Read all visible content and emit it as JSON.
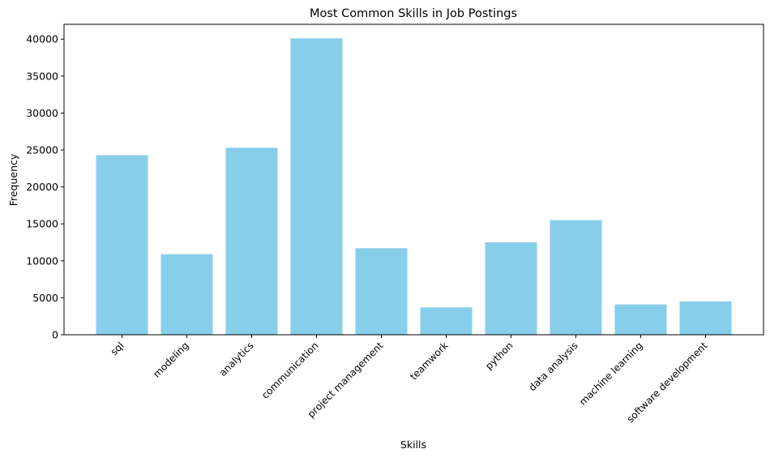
{
  "chart_data": {
    "type": "bar",
    "title": "Most Common Skills in Job Postings",
    "xlabel": "Skills",
    "ylabel": "Frequency",
    "categories": [
      "sql",
      "modeling",
      "analytics",
      "communication",
      "project management",
      "teamwork",
      "python",
      "data analysis",
      "machine learning",
      "software development"
    ],
    "values": [
      24300,
      10900,
      25300,
      40100,
      11700,
      3700,
      12500,
      15500,
      4100,
      4500
    ],
    "ylim": [
      0,
      42000
    ],
    "yticks": [
      0,
      5000,
      10000,
      15000,
      20000,
      25000,
      30000,
      35000,
      40000
    ],
    "bar_color": "#87CEEB",
    "grid": false,
    "xtick_rotation": 45
  }
}
